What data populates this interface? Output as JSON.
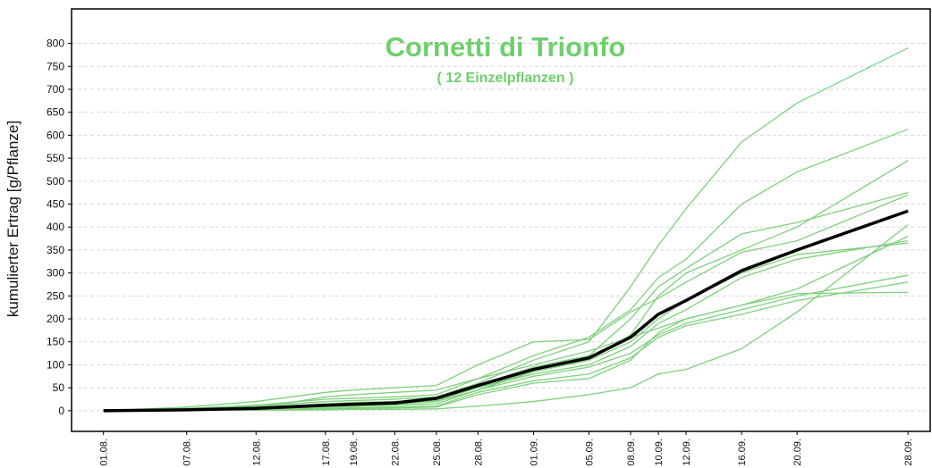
{
  "chart_data": {
    "type": "line",
    "title": "Cornetti di Trionfo",
    "subtitle": "( 12 Einzelpflanzen )",
    "ylabel": "kumulierter Ertrag [g/Pflanze]",
    "title_color": "#6fcf6c",
    "categories": [
      "01.08.",
      "07.08.",
      "12.08.",
      "17.08.",
      "19.08.",
      "22.08.",
      "25.08.",
      "28.08.",
      "01.09.",
      "05.09.",
      "08.09.",
      "10.09.",
      "12.09.",
      "16.09.",
      "20.09.",
      "28.09."
    ],
    "ylim": [
      -45,
      875
    ],
    "yticks": [
      0,
      50,
      100,
      150,
      200,
      250,
      300,
      350,
      400,
      450,
      500,
      550,
      600,
      650,
      700,
      750,
      800
    ],
    "grid": true,
    "series": [
      {
        "color": "#7fd07c",
        "values": [
          0,
          5,
          10,
          20,
          22,
          25,
          30,
          60,
          110,
          150,
          270,
          360,
          440,
          585,
          670,
          790
        ]
      },
      {
        "color": "#7fd07c",
        "values": [
          0,
          5,
          12,
          25,
          27,
          30,
          35,
          70,
          120,
          160,
          220,
          290,
          330,
          450,
          520,
          613
        ]
      },
      {
        "color": "#7fd07c",
        "values": [
          0,
          3,
          8,
          15,
          18,
          20,
          25,
          55,
          95,
          120,
          200,
          270,
          310,
          385,
          410,
          475
        ]
      },
      {
        "color": "#7fd07c",
        "values": [
          0,
          2,
          5,
          12,
          14,
          17,
          22,
          50,
          85,
          110,
          165,
          250,
          300,
          350,
          400,
          545
        ]
      },
      {
        "color": "#7fd07c",
        "values": [
          0,
          8,
          20,
          40,
          45,
          50,
          55,
          100,
          150,
          155,
          215,
          245,
          280,
          345,
          370,
          470
        ]
      },
      {
        "color": "#7fd07c",
        "values": [
          0,
          2,
          4,
          10,
          12,
          14,
          20,
          45,
          85,
          110,
          150,
          200,
          240,
          300,
          340,
          365
        ]
      },
      {
        "color": "#7fd07c",
        "values": [
          0,
          2,
          5,
          10,
          12,
          15,
          25,
          50,
          80,
          100,
          140,
          190,
          220,
          290,
          330,
          370
        ]
      },
      {
        "color": "#7fd07c",
        "values": [
          0,
          1,
          3,
          8,
          10,
          12,
          15,
          45,
          75,
          95,
          125,
          165,
          190,
          220,
          250,
          295
        ]
      },
      {
        "color": "#7fd07c",
        "values": [
          0,
          1,
          2,
          5,
          7,
          8,
          10,
          40,
          65,
          80,
          115,
          160,
          185,
          210,
          240,
          280
        ]
      },
      {
        "color": "#7fd07c",
        "values": [
          0,
          1,
          2,
          4,
          5,
          6,
          8,
          35,
          60,
          70,
          110,
          170,
          200,
          230,
          255,
          258
        ]
      },
      {
        "color": "#7fd07c",
        "values": [
          0,
          1,
          1,
          2,
          3,
          3,
          4,
          10,
          20,
          35,
          50,
          80,
          90,
          135,
          215,
          405
        ]
      },
      {
        "color": "#7fd07c",
        "values": [
          0,
          2,
          6,
          30,
          35,
          40,
          45,
          70,
          100,
          130,
          160,
          180,
          200,
          230,
          265,
          380
        ]
      },
      {
        "color": "#000000",
        "values": [
          0,
          2,
          5,
          12,
          14,
          17,
          27,
          55,
          90,
          115,
          160,
          210,
          240,
          305,
          350,
          435
        ]
      }
    ]
  }
}
